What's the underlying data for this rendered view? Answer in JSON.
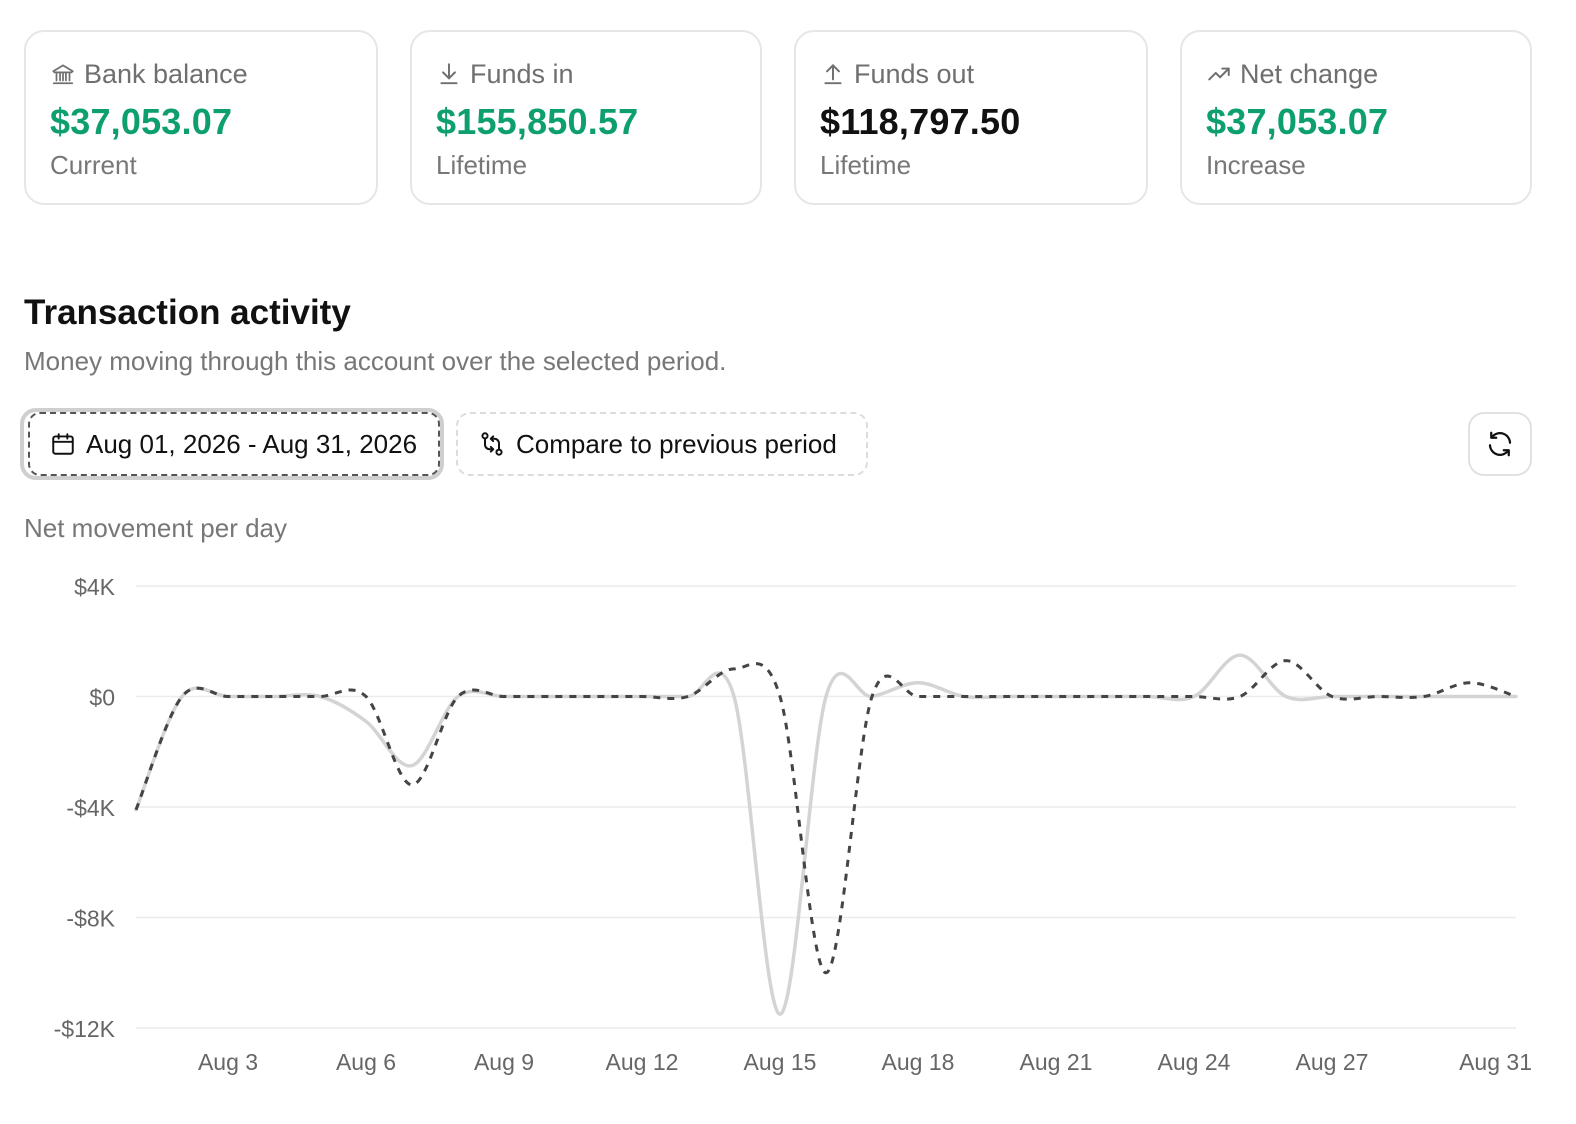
{
  "cards": [
    {
      "icon": "bank-icon",
      "label": "Bank balance",
      "value": "$37,053.07",
      "sub": "Current",
      "color": "#0e9f6e"
    },
    {
      "icon": "arrow-down-icon",
      "label": "Funds in",
      "value": "$155,850.57",
      "sub": "Lifetime",
      "color": "#0e9f6e"
    },
    {
      "icon": "arrow-up-icon",
      "label": "Funds out",
      "value": "$118,797.50",
      "sub": "Lifetime",
      "color": "#111111"
    },
    {
      "icon": "trend-up-icon",
      "label": "Net change",
      "value": "$37,053.07",
      "sub": "Increase",
      "color": "#0e9f6e"
    }
  ],
  "section": {
    "title": "Transaction activity",
    "description": "Money moving through this account over the selected period."
  },
  "controls": {
    "date_range": "Aug 01, 2026 - Aug 31, 2026",
    "compare_label": "Compare to previous period"
  },
  "chart_data": {
    "type": "line",
    "title": "Net movement per day",
    "xlabel": "",
    "ylabel": "",
    "ylim": [
      -12000,
      4000
    ],
    "y_ticks": [
      4000,
      0,
      -4000,
      -8000,
      -12000
    ],
    "y_tick_labels": [
      "$4K",
      "$0",
      "-$4K",
      "-$8K",
      "-$12K"
    ],
    "x_ticks": [
      3,
      6,
      9,
      12,
      15,
      18,
      21,
      24,
      27,
      31
    ],
    "x_tick_labels": [
      "Aug 3",
      "Aug 6",
      "Aug 9",
      "Aug 12",
      "Aug 15",
      "Aug 18",
      "Aug 21",
      "Aug 24",
      "Aug 27",
      "Aug 31"
    ],
    "grid": true,
    "legend": "none",
    "x": [
      1,
      2,
      3,
      4,
      5,
      6,
      7,
      8,
      9,
      10,
      11,
      12,
      13,
      14,
      15,
      16,
      17,
      18,
      19,
      20,
      21,
      22,
      23,
      24,
      25,
      26,
      27,
      28,
      29,
      30,
      31
    ],
    "series": [
      {
        "style": "solid",
        "color": "#d4d4d4",
        "values": [
          -4100,
          0,
          0,
          0,
          0,
          -900,
          -2500,
          0,
          0,
          0,
          0,
          0,
          0,
          0,
          -11500,
          0,
          0,
          500,
          0,
          0,
          0,
          0,
          0,
          0,
          1500,
          0,
          0,
          0,
          0,
          0,
          0
        ]
      },
      {
        "style": "dashed",
        "color": "#444444",
        "values": [
          -4100,
          0,
          0,
          0,
          0,
          0,
          -3200,
          0,
          0,
          0,
          0,
          0,
          0,
          1000,
          0,
          -10000,
          0,
          0,
          0,
          0,
          0,
          0,
          0,
          0,
          0,
          1300,
          0,
          0,
          0,
          500,
          0
        ]
      }
    ]
  }
}
